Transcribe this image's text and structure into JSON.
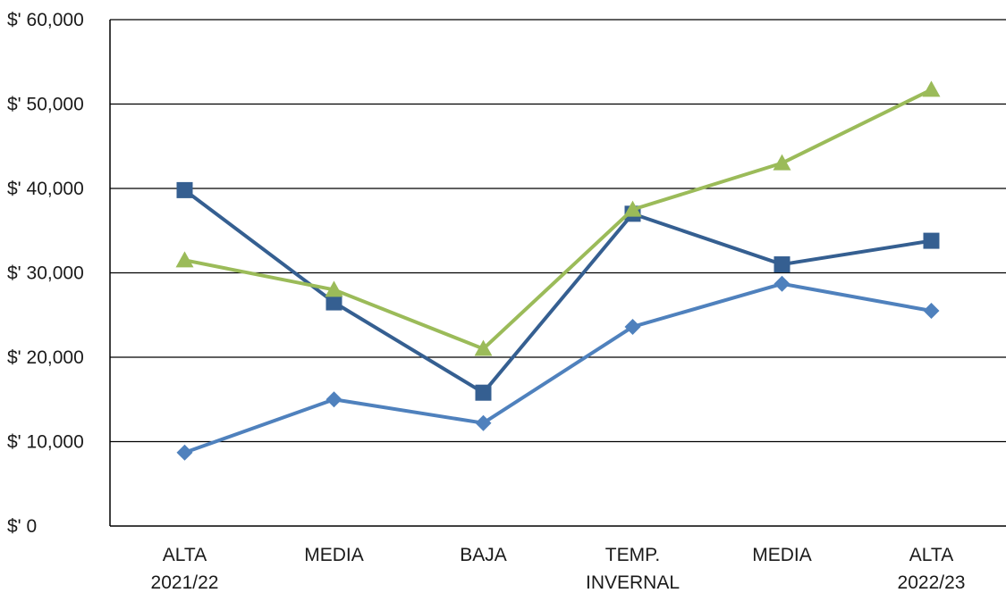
{
  "chart_data": {
    "type": "line",
    "title": "",
    "xlabel": "",
    "ylabel": "",
    "ylim": [
      0,
      60000
    ],
    "yticks": [
      0,
      10000,
      20000,
      30000,
      40000,
      50000,
      60000
    ],
    "ytick_labels": [
      "$' 0",
      "$' 10,000",
      "$' 20,000",
      "$' 30,000",
      "$' 40,000",
      "$' 50,000",
      "$' 60,000"
    ],
    "grid": true,
    "legend": "none",
    "categories": [
      [
        "ALTA",
        "2021/22"
      ],
      [
        "MEDIA"
      ],
      [
        "BAJA"
      ],
      [
        "TEMP.",
        "INVERNAL"
      ],
      [
        "MEDIA"
      ],
      [
        "ALTA",
        "2022/23"
      ]
    ],
    "series": [
      {
        "marker": "diamond",
        "color": "#4f81bd",
        "values": [
          8700,
          15000,
          12200,
          23600,
          28700,
          25500
        ]
      },
      {
        "marker": "square",
        "color": "#355f91",
        "values": [
          39800,
          26500,
          15800,
          37000,
          31000,
          33800
        ]
      },
      {
        "marker": "triangle",
        "color": "#9bbb59",
        "values": [
          31500,
          28000,
          21000,
          37500,
          43000,
          51700
        ]
      }
    ]
  }
}
